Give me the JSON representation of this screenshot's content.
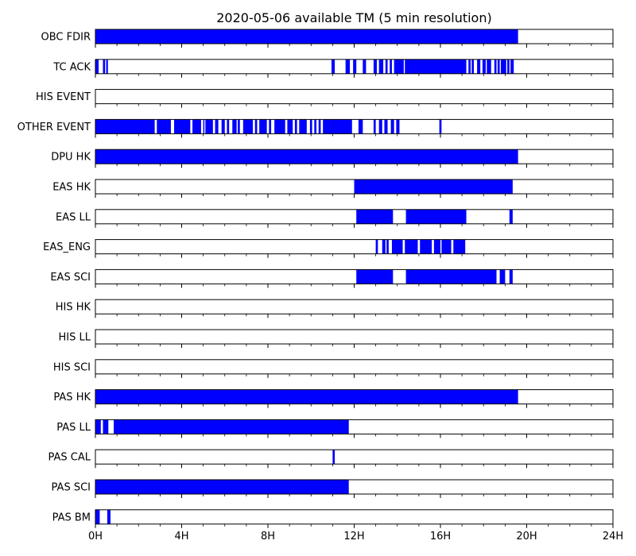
{
  "chart_data": {
    "type": "timeline",
    "title": "2020-05-06 available TM (5 min resolution)",
    "x_unit": "hours",
    "xlim": [
      0,
      24
    ],
    "x_ticks": [
      {
        "value": 0,
        "label": "0H"
      },
      {
        "value": 4,
        "label": "4H"
      },
      {
        "value": 8,
        "label": "8H"
      },
      {
        "value": 12,
        "label": "12H"
      },
      {
        "value": 16,
        "label": "16H"
      },
      {
        "value": 20,
        "label": "20H"
      },
      {
        "value": 24,
        "label": "24H"
      }
    ],
    "minor_tick_step_hours": 1,
    "bar_color": "#0000ff",
    "rows": [
      {
        "label": "OBC FDIR",
        "intervals": [
          [
            0,
            19.6
          ]
        ]
      },
      {
        "label": "TC ACK",
        "intervals": [
          [
            0,
            0.15
          ],
          [
            0.35,
            0.45
          ],
          [
            0.5,
            0.58
          ],
          [
            10.95,
            11.1
          ],
          [
            11.6,
            11.8
          ],
          [
            11.95,
            12.1
          ],
          [
            12.4,
            12.55
          ],
          [
            12.9,
            13.05
          ],
          [
            13.15,
            13.35
          ],
          [
            13.45,
            13.55
          ],
          [
            13.65,
            13.75
          ],
          [
            13.85,
            14.3
          ],
          [
            14.35,
            17.2
          ],
          [
            17.3,
            17.4
          ],
          [
            17.45,
            17.55
          ],
          [
            17.7,
            17.85
          ],
          [
            17.95,
            18.1
          ],
          [
            18.15,
            18.35
          ],
          [
            18.5,
            18.6
          ],
          [
            18.65,
            18.75
          ],
          [
            18.8,
            19.05
          ],
          [
            19.1,
            19.2
          ],
          [
            19.25,
            19.4
          ]
        ]
      },
      {
        "label": "HIS EVENT",
        "intervals": []
      },
      {
        "label": "OTHER EVENT",
        "intervals": [
          [
            0,
            2.75
          ],
          [
            2.85,
            3.5
          ],
          [
            3.65,
            4.4
          ],
          [
            4.5,
            4.9
          ],
          [
            5.0,
            5.05
          ],
          [
            5.1,
            5.45
          ],
          [
            5.55,
            5.7
          ],
          [
            5.85,
            6.0
          ],
          [
            6.1,
            6.2
          ],
          [
            6.35,
            6.55
          ],
          [
            6.6,
            6.7
          ],
          [
            6.85,
            7.3
          ],
          [
            7.4,
            7.5
          ],
          [
            7.6,
            7.95
          ],
          [
            8.05,
            8.15
          ],
          [
            8.3,
            8.8
          ],
          [
            8.9,
            9.15
          ],
          [
            9.25,
            9.35
          ],
          [
            9.45,
            9.8
          ],
          [
            9.95,
            10.05
          ],
          [
            10.15,
            10.25
          ],
          [
            10.35,
            10.45
          ],
          [
            10.55,
            11.9
          ],
          [
            12.2,
            12.4
          ],
          [
            12.9,
            13.0
          ],
          [
            13.15,
            13.3
          ],
          [
            13.4,
            13.55
          ],
          [
            13.7,
            13.85
          ],
          [
            13.95,
            14.1
          ],
          [
            15.95,
            16.05
          ]
        ]
      },
      {
        "label": "DPU HK",
        "intervals": [
          [
            0,
            19.6
          ]
        ]
      },
      {
        "label": "EAS HK",
        "intervals": [
          [
            12.0,
            19.35
          ]
        ]
      },
      {
        "label": "EAS LL",
        "intervals": [
          [
            12.1,
            13.8
          ],
          [
            14.4,
            17.2
          ],
          [
            19.2,
            19.35
          ]
        ]
      },
      {
        "label": "EAS_ENG",
        "intervals": [
          [
            13.0,
            13.1
          ],
          [
            13.3,
            13.45
          ],
          [
            13.5,
            13.6
          ],
          [
            13.75,
            14.25
          ],
          [
            14.35,
            14.95
          ],
          [
            15.05,
            15.6
          ],
          [
            15.7,
            16.0
          ],
          [
            16.05,
            16.5
          ],
          [
            16.6,
            17.15
          ]
        ]
      },
      {
        "label": "EAS SCI",
        "intervals": [
          [
            12.1,
            13.8
          ],
          [
            14.4,
            18.6
          ],
          [
            18.75,
            19.0
          ],
          [
            19.2,
            19.35
          ]
        ]
      },
      {
        "label": "HIS HK",
        "intervals": []
      },
      {
        "label": "HIS LL",
        "intervals": []
      },
      {
        "label": "HIS SCI",
        "intervals": []
      },
      {
        "label": "PAS HK",
        "intervals": [
          [
            0,
            19.6
          ]
        ]
      },
      {
        "label": "PAS LL",
        "intervals": [
          [
            0,
            0.25
          ],
          [
            0.35,
            0.6
          ],
          [
            0.85,
            11.75
          ]
        ]
      },
      {
        "label": "PAS CAL",
        "intervals": [
          [
            11.0,
            11.1
          ]
        ]
      },
      {
        "label": "PAS SCI",
        "intervals": [
          [
            0,
            11.75
          ]
        ]
      },
      {
        "label": "PAS BM",
        "intervals": [
          [
            0,
            0.2
          ],
          [
            0.55,
            0.7
          ]
        ]
      }
    ]
  }
}
